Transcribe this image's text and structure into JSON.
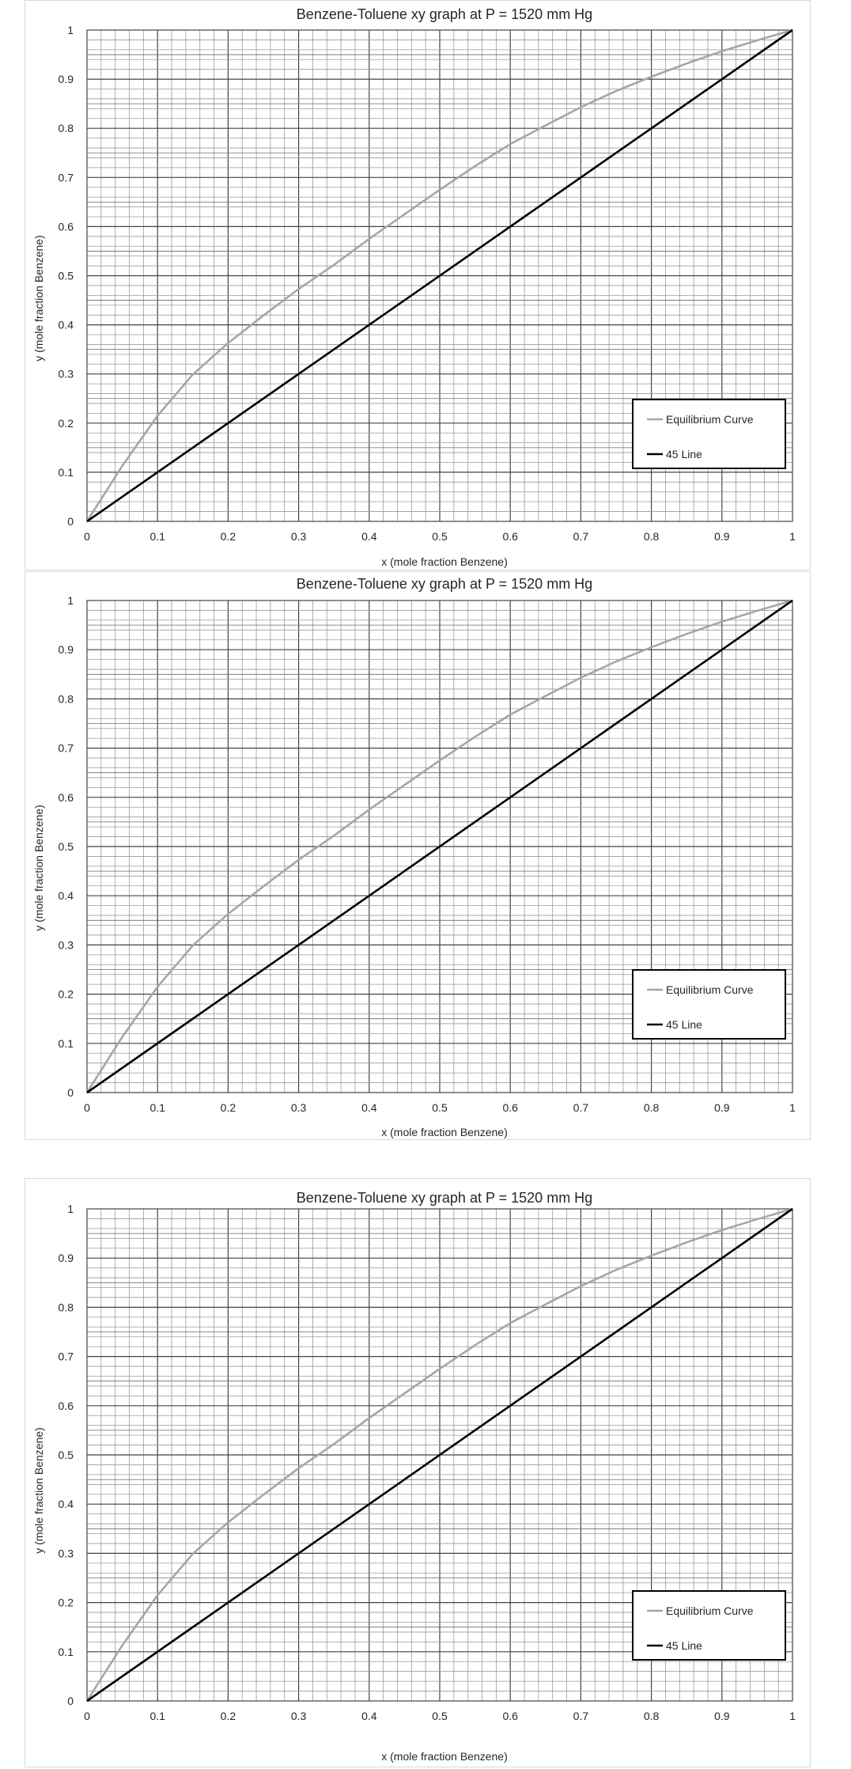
{
  "chart_data": [
    {
      "type": "line",
      "title": "Benzene-Toluene xy graph at P = 1520 mm Hg",
      "xlabel": "x (mole fraction Benzene)",
      "ylabel": "y (mole fraction Benzene)",
      "xlim": [
        0,
        1
      ],
      "ylim": [
        0,
        1
      ],
      "xticks": [
        "0",
        "0.1",
        "0.2",
        "0.3",
        "0.4",
        "0.5",
        "0.6",
        "0.7",
        "0.8",
        "0.9",
        "1"
      ],
      "yticks": [
        "0",
        "0.1",
        "0.2",
        "0.3",
        "0.4",
        "0.5",
        "0.6",
        "0.7",
        "0.8",
        "0.9",
        "1"
      ],
      "grid": true,
      "legend_position": "bottom-right",
      "series": [
        {
          "name": "Equilibrium Curve",
          "color": "#a6a6a6",
          "x": [
            0,
            0.05,
            0.1,
            0.15,
            0.2,
            0.25,
            0.3,
            0.35,
            0.4,
            0.45,
            0.5,
            0.55,
            0.6,
            0.65,
            0.7,
            0.75,
            0.8,
            0.85,
            0.9,
            0.95,
            1
          ],
          "y": [
            0,
            0.113,
            0.215,
            0.299,
            0.363,
            0.419,
            0.473,
            0.522,
            0.575,
            0.625,
            0.675,
            0.723,
            0.768,
            0.806,
            0.843,
            0.876,
            0.905,
            0.932,
            0.957,
            0.979,
            1
          ]
        },
        {
          "name": "45 Line",
          "color": "#000000",
          "x": [
            0,
            1
          ],
          "y": [
            0,
            1
          ]
        }
      ]
    },
    {
      "type": "line",
      "title": "Benzene-Toluene xy graph at P = 1520 mm Hg",
      "xlabel": "x (mole fraction Benzene)",
      "ylabel": "y (mole fraction Benzene)",
      "xlim": [
        0,
        1
      ],
      "ylim": [
        0,
        1
      ],
      "xticks": [
        "0",
        "0.1",
        "0.2",
        "0.3",
        "0.4",
        "0.5",
        "0.6",
        "0.7",
        "0.8",
        "0.9",
        "1"
      ],
      "yticks": [
        "0",
        "0.1",
        "0.2",
        "0.3",
        "0.4",
        "0.5",
        "0.6",
        "0.7",
        "0.8",
        "0.9",
        "1"
      ],
      "grid": true,
      "legend_position": "bottom-right",
      "series": [
        {
          "name": "Equilibrium Curve",
          "color": "#a6a6a6",
          "x": [
            0,
            0.05,
            0.1,
            0.15,
            0.2,
            0.25,
            0.3,
            0.35,
            0.4,
            0.45,
            0.5,
            0.55,
            0.6,
            0.65,
            0.7,
            0.75,
            0.8,
            0.85,
            0.9,
            0.95,
            1
          ],
          "y": [
            0,
            0.113,
            0.215,
            0.299,
            0.363,
            0.419,
            0.473,
            0.522,
            0.575,
            0.625,
            0.675,
            0.723,
            0.768,
            0.806,
            0.843,
            0.876,
            0.905,
            0.932,
            0.957,
            0.979,
            1
          ]
        },
        {
          "name": "45 Line",
          "color": "#000000",
          "x": [
            0,
            1
          ],
          "y": [
            0,
            1
          ]
        }
      ]
    },
    {
      "type": "line",
      "title": "Benzene-Toluene xy graph at P = 1520 mm Hg",
      "xlabel": "x (mole fraction Benzene)",
      "ylabel": "y (mole fraction Benzene)",
      "xlim": [
        0,
        1
      ],
      "ylim": [
        0,
        1
      ],
      "xticks": [
        "0",
        "0.1",
        "0.2",
        "0.3",
        "0.4",
        "0.5",
        "0.6",
        "0.7",
        "0.8",
        "0.9",
        "1"
      ],
      "yticks": [
        "0",
        "0.1",
        "0.2",
        "0.3",
        "0.4",
        "0.5",
        "0.6",
        "0.7",
        "0.8",
        "0.9",
        "1"
      ],
      "grid": true,
      "legend_position": "bottom-right",
      "series": [
        {
          "name": "Equilibrium Curve",
          "color": "#a6a6a6",
          "x": [
            0,
            0.05,
            0.1,
            0.15,
            0.2,
            0.25,
            0.3,
            0.35,
            0.4,
            0.45,
            0.5,
            0.55,
            0.6,
            0.65,
            0.7,
            0.75,
            0.8,
            0.85,
            0.9,
            0.95,
            1
          ],
          "y": [
            0,
            0.113,
            0.215,
            0.299,
            0.363,
            0.419,
            0.473,
            0.522,
            0.575,
            0.625,
            0.675,
            0.723,
            0.768,
            0.806,
            0.843,
            0.876,
            0.905,
            0.932,
            0.957,
            0.979,
            1
          ]
        },
        {
          "name": "45 Line",
          "color": "#000000",
          "x": [
            0,
            1
          ],
          "y": [
            0,
            1
          ]
        }
      ]
    }
  ]
}
